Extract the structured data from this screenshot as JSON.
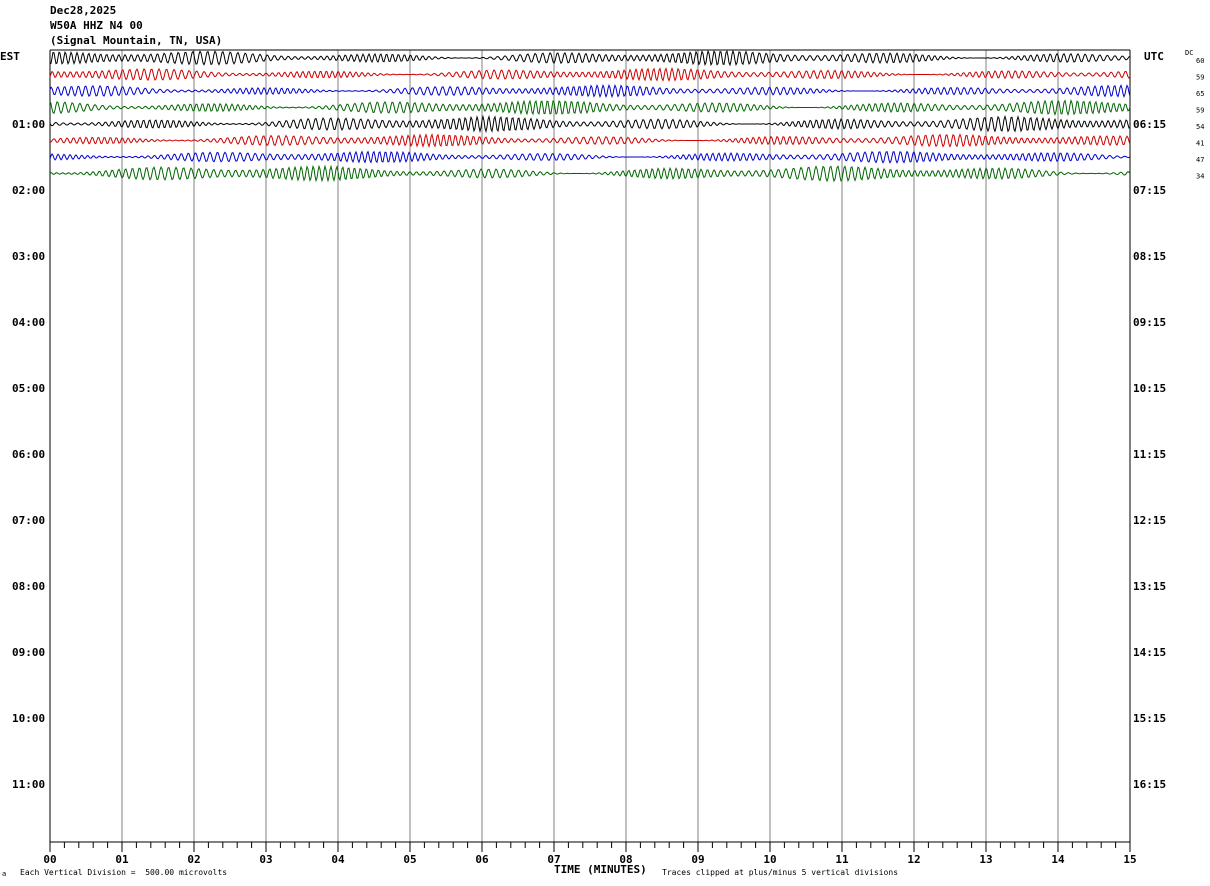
{
  "header": {
    "date": "Dec28,2025",
    "station": "W50A HHZ N4 00",
    "location": "(Signal Mountain, TN, USA)"
  },
  "left_zone": "EST",
  "right_zone": "UTC",
  "dc_label": "DC",
  "footer": {
    "scale_note": "Each Vertical Division =  500.00 microvolts",
    "clip_note": "Traces clipped at plus/minus 5 vertical divisions",
    "corner_mark": "a"
  },
  "chart_data": {
    "type": "line",
    "title": "",
    "xlabel": "TIME (MINUTES)",
    "ylabel": "",
    "xlim": [
      0,
      15
    ],
    "x_ticks": [
      "00",
      "01",
      "02",
      "03",
      "04",
      "05",
      "06",
      "07",
      "08",
      "09",
      "10",
      "11",
      "12",
      "13",
      "14",
      "15"
    ],
    "left_hour_labels": [
      "01:00",
      "02:00",
      "03:00",
      "04:00",
      "05:00",
      "06:00",
      "07:00",
      "08:00",
      "09:00",
      "10:00",
      "11:00"
    ],
    "right_hour_labels": [
      "06:15",
      "07:15",
      "08:15",
      "09:15",
      "10:15",
      "11:15",
      "12:15",
      "13:15",
      "14:15",
      "15:15",
      "16:15"
    ],
    "dc_offsets": [
      "60",
      "59",
      "65",
      "59",
      "54",
      "41",
      "47",
      "34"
    ],
    "trace_colors": [
      "#000000",
      "#cc0000",
      "#0000cc",
      "#006600"
    ],
    "trace_amplitudes": [
      1.0,
      0.85,
      0.8,
      1.0,
      1.05,
      0.85,
      0.8,
      1.05
    ],
    "grid": true
  }
}
